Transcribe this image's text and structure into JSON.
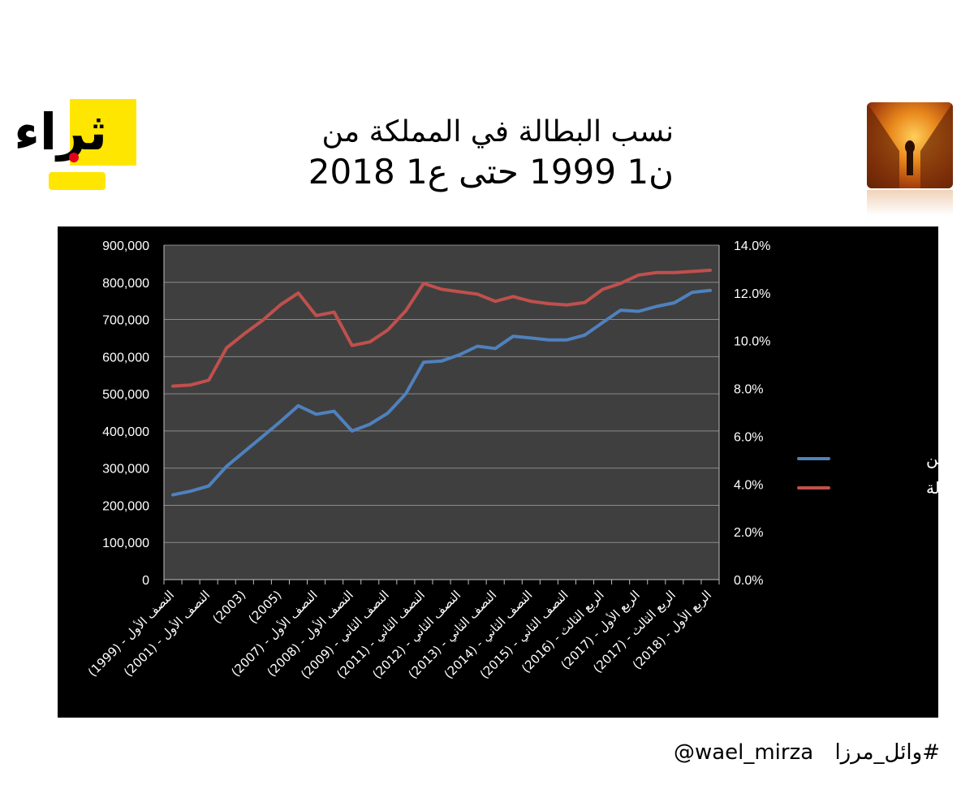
{
  "logo": {
    "text": "ثراء"
  },
  "title": {
    "line1": "نسب البطالة في المملكة من",
    "line2": "ن1 1999 حتى ع1 2018"
  },
  "footer": {
    "hashtag": "#وائل_مرزا",
    "handle": "@wael_mirza"
  },
  "colors": {
    "unemployed_line": "#4f81bd",
    "rate_line": "#c0504d",
    "plot_bg": "#3f3f3f",
    "chart_bg": "#000000",
    "logo_yellow": "#ffe600"
  },
  "chart_data": {
    "type": "line",
    "title": "",
    "xlabel": "",
    "ylabel": "",
    "y_left_ticks": [
      "0",
      "100,000",
      "200,000",
      "300,000",
      "400,000",
      "500,000",
      "600,000",
      "700,000",
      "800,000",
      "900,000"
    ],
    "y_right_ticks": [
      "0.0%",
      "2.0%",
      "4.0%",
      "6.0%",
      "8.0%",
      "10.0%",
      "12.0%",
      "14.0%"
    ],
    "ylim_left": [
      0,
      900000
    ],
    "ylim_right": [
      0,
      14
    ],
    "x_tick_labels": [
      "(1999) - النصف الأول",
      "(2001) - النصف الأول",
      "(2003)",
      "(2005)",
      "(2007) - النصف الأول",
      "(2008) - النصف الأول",
      "(2009) - النصف الثاني",
      "(2011) - النصف الثاني",
      "(2012) - النصف الثاني",
      "(2013) - النصف الثاني",
      "(2014) - النصف الثاني",
      "(2015) - النصف الثاني",
      "(2016) - الربع الثالث",
      "(2017) - الربع الأول",
      "(2017) - الربع الثالث",
      "(2018) - الربع الأول"
    ],
    "legend_position": "right",
    "series": [
      {
        "name": "جملة المتعطلين",
        "axis": "left",
        "values": [
          228000,
          238000,
          252000,
          305000,
          345000,
          385000,
          425000,
          468000,
          445000,
          453000,
          400000,
          418000,
          448000,
          500000,
          585000,
          588000,
          605000,
          628000,
          622000,
          655000,
          650000,
          645000,
          645000,
          658000,
          692000,
          725000,
          722000,
          735000,
          745000,
          773000,
          778000
        ]
      },
      {
        "name": "% البطالة",
        "axis": "right",
        "values": [
          8.1,
          8.15,
          8.35,
          9.7,
          10.3,
          10.85,
          11.5,
          12.0,
          11.05,
          11.2,
          9.8,
          9.95,
          10.45,
          11.25,
          12.4,
          12.15,
          12.05,
          11.95,
          11.65,
          11.85,
          11.65,
          11.55,
          11.5,
          11.6,
          12.15,
          12.4,
          12.75,
          12.85,
          12.85,
          12.9,
          12.95
        ]
      }
    ]
  }
}
